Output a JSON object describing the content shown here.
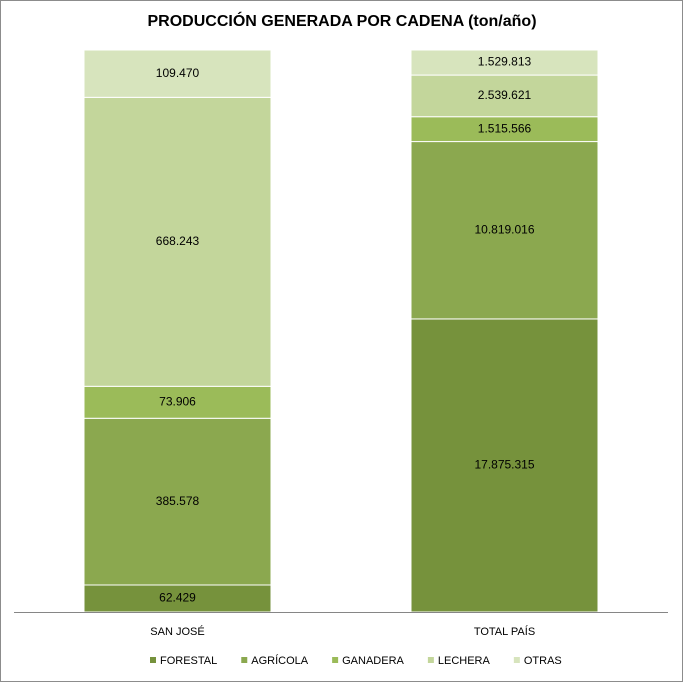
{
  "chart_data": {
    "type": "stacked_percent_bar",
    "title": "PRODUCCIÓN GENERADA POR CADENA (ton/año)",
    "categories": [
      "SAN JOSÉ",
      "TOTAL PAÍS"
    ],
    "series": [
      {
        "name": "FORESTAL",
        "color": "#76923c",
        "values": [
          62429,
          17875315
        ],
        "value_labels": [
          "62.429",
          "17.875.315"
        ]
      },
      {
        "name": "AGRÍCOLA",
        "color": "#8ba84f",
        "values": [
          385578,
          10819016
        ],
        "value_labels": [
          "385.578",
          "10.819.016"
        ]
      },
      {
        "name": "GANADERA",
        "color": "#9bbb59",
        "values": [
          73906,
          1515566
        ],
        "value_labels": [
          "73.906",
          "1.515.566"
        ]
      },
      {
        "name": "LECHERA",
        "color": "#c3d69b",
        "values": [
          668243,
          2539621
        ],
        "value_labels": [
          "668.243",
          "2.539.621"
        ]
      },
      {
        "name": "OTRAS",
        "color": "#d7e4bd",
        "values": [
          109470,
          1529813
        ],
        "value_labels": [
          "109.470",
          "1.529.813"
        ]
      }
    ],
    "legend": "bottom"
  }
}
